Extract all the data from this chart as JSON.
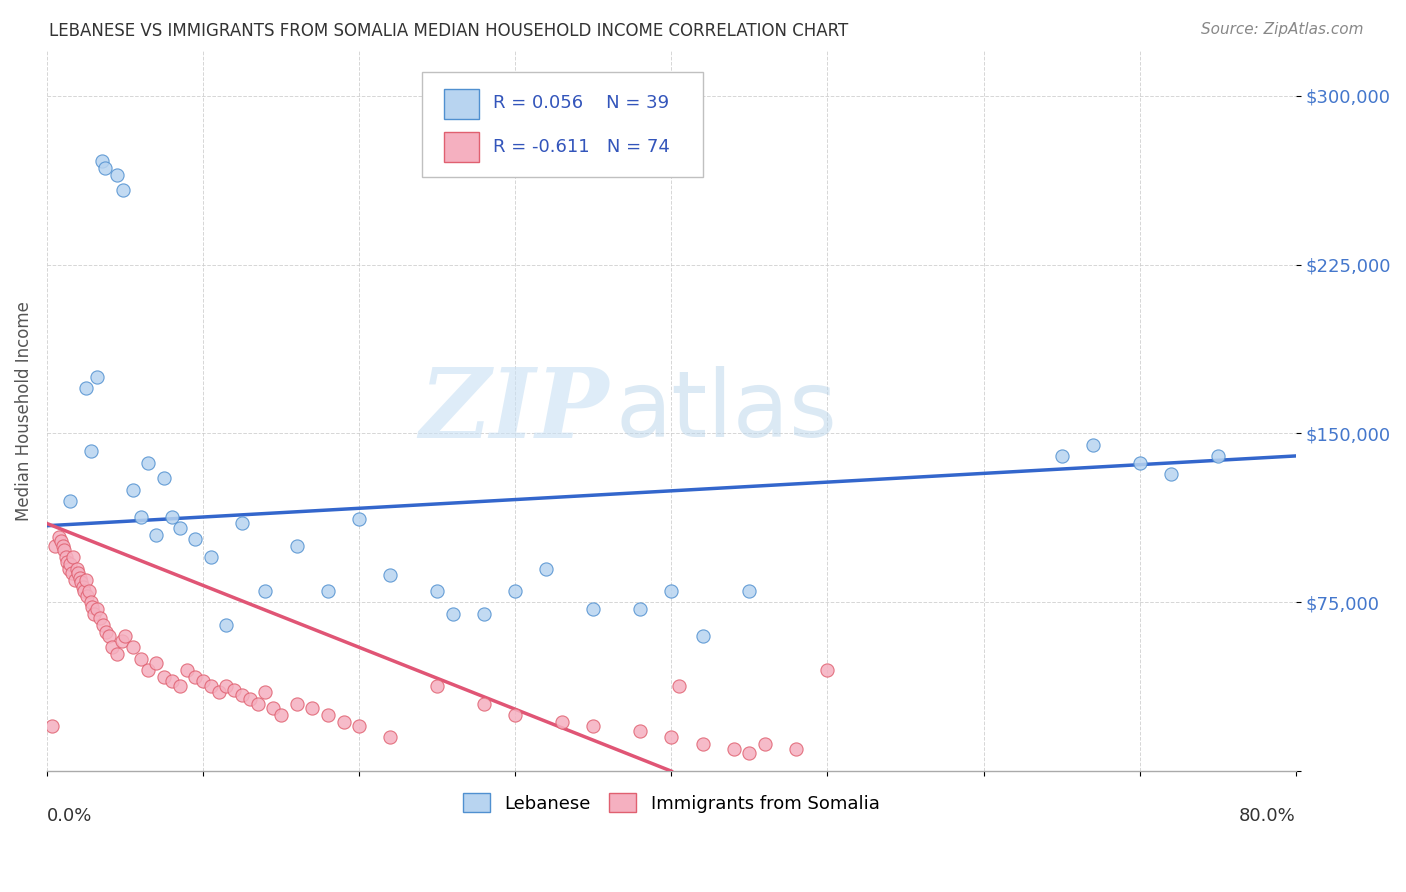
{
  "title": "LEBANESE VS IMMIGRANTS FROM SOMALIA MEDIAN HOUSEHOLD INCOME CORRELATION CHART",
  "source": "Source: ZipAtlas.com",
  "ylabel": "Median Household Income",
  "yticks": [
    0,
    75000,
    150000,
    225000,
    300000
  ],
  "ytick_labels": [
    "",
    "$75,000",
    "$150,000",
    "$225,000",
    "$300,000"
  ],
  "xlim": [
    0.0,
    80.0
  ],
  "ylim": [
    0,
    320000
  ],
  "legend_r1": "R = 0.056",
  "legend_n1": "N = 39",
  "legend_r2": "R = -0.611",
  "legend_n2": "N = 74",
  "color_lebanese_fill": "#b8d4f0",
  "color_lebanese_edge": "#5090d0",
  "color_somalia_fill": "#f5b0c0",
  "color_somalia_edge": "#e06070",
  "color_line_lebanese": "#3366cc",
  "color_line_somalia": "#e05575",
  "color_legend_text": "#3355bb",
  "color_grid": "#cccccc",
  "color_title": "#333333",
  "color_source": "#888888",
  "color_ylabel": "#555555",
  "color_ytick": "#4477cc",
  "lebanese_x": [
    3.5,
    3.7,
    4.5,
    4.9,
    2.5,
    6.5,
    7.5,
    1.5,
    2.8,
    5.5,
    6.0,
    7.0,
    8.0,
    8.5,
    9.5,
    10.5,
    11.5,
    12.5,
    14.0,
    16.0,
    18.0,
    20.0,
    22.0,
    25.0,
    26.0,
    28.0,
    30.0,
    32.0,
    35.0,
    38.0,
    40.0,
    42.0,
    45.0,
    65.0,
    67.0,
    70.0,
    72.0,
    75.0,
    3.2
  ],
  "lebanese_y": [
    271000,
    268000,
    265000,
    258000,
    170000,
    137000,
    130000,
    120000,
    142000,
    125000,
    113000,
    105000,
    113000,
    108000,
    103000,
    95000,
    65000,
    110000,
    80000,
    100000,
    80000,
    112000,
    87000,
    80000,
    70000,
    70000,
    80000,
    90000,
    72000,
    72000,
    80000,
    60000,
    80000,
    140000,
    145000,
    137000,
    132000,
    140000,
    175000
  ],
  "somalia_x": [
    0.3,
    0.5,
    0.8,
    0.9,
    1.0,
    1.1,
    1.2,
    1.3,
    1.4,
    1.5,
    1.6,
    1.7,
    1.8,
    1.9,
    2.0,
    2.1,
    2.2,
    2.3,
    2.4,
    2.5,
    2.6,
    2.7,
    2.8,
    2.9,
    3.0,
    3.2,
    3.4,
    3.6,
    3.8,
    4.0,
    4.2,
    4.5,
    4.8,
    5.0,
    5.5,
    6.0,
    6.5,
    7.0,
    7.5,
    8.0,
    8.5,
    9.0,
    9.5,
    10.0,
    10.5,
    11.0,
    11.5,
    12.0,
    12.5,
    13.0,
    13.5,
    14.0,
    14.5,
    15.0,
    16.0,
    17.0,
    18.0,
    19.0,
    20.0,
    22.0,
    25.0,
    28.0,
    30.0,
    33.0,
    35.0,
    38.0,
    40.0,
    42.0,
    44.0,
    45.0,
    46.0,
    48.0,
    50.0,
    40.5
  ],
  "somalia_y": [
    20000,
    100000,
    104000,
    102000,
    100000,
    98000,
    95000,
    93000,
    90000,
    92000,
    88000,
    95000,
    85000,
    90000,
    88000,
    86000,
    84000,
    82000,
    80000,
    85000,
    78000,
    80000,
    75000,
    73000,
    70000,
    72000,
    68000,
    65000,
    62000,
    60000,
    55000,
    52000,
    58000,
    60000,
    55000,
    50000,
    45000,
    48000,
    42000,
    40000,
    38000,
    45000,
    42000,
    40000,
    38000,
    35000,
    38000,
    36000,
    34000,
    32000,
    30000,
    35000,
    28000,
    25000,
    30000,
    28000,
    25000,
    22000,
    20000,
    15000,
    38000,
    30000,
    25000,
    22000,
    20000,
    18000,
    15000,
    12000,
    10000,
    8000,
    12000,
    10000,
    45000,
    38000
  ],
  "trendline_leb_x0": 0.0,
  "trendline_leb_y0": 109000,
  "trendline_leb_x1": 80.0,
  "trendline_leb_y1": 140000,
  "trendline_som_x0": 0.0,
  "trendline_som_y0": 110000,
  "trendline_som_x1": 40.0,
  "trendline_som_y1": 0
}
